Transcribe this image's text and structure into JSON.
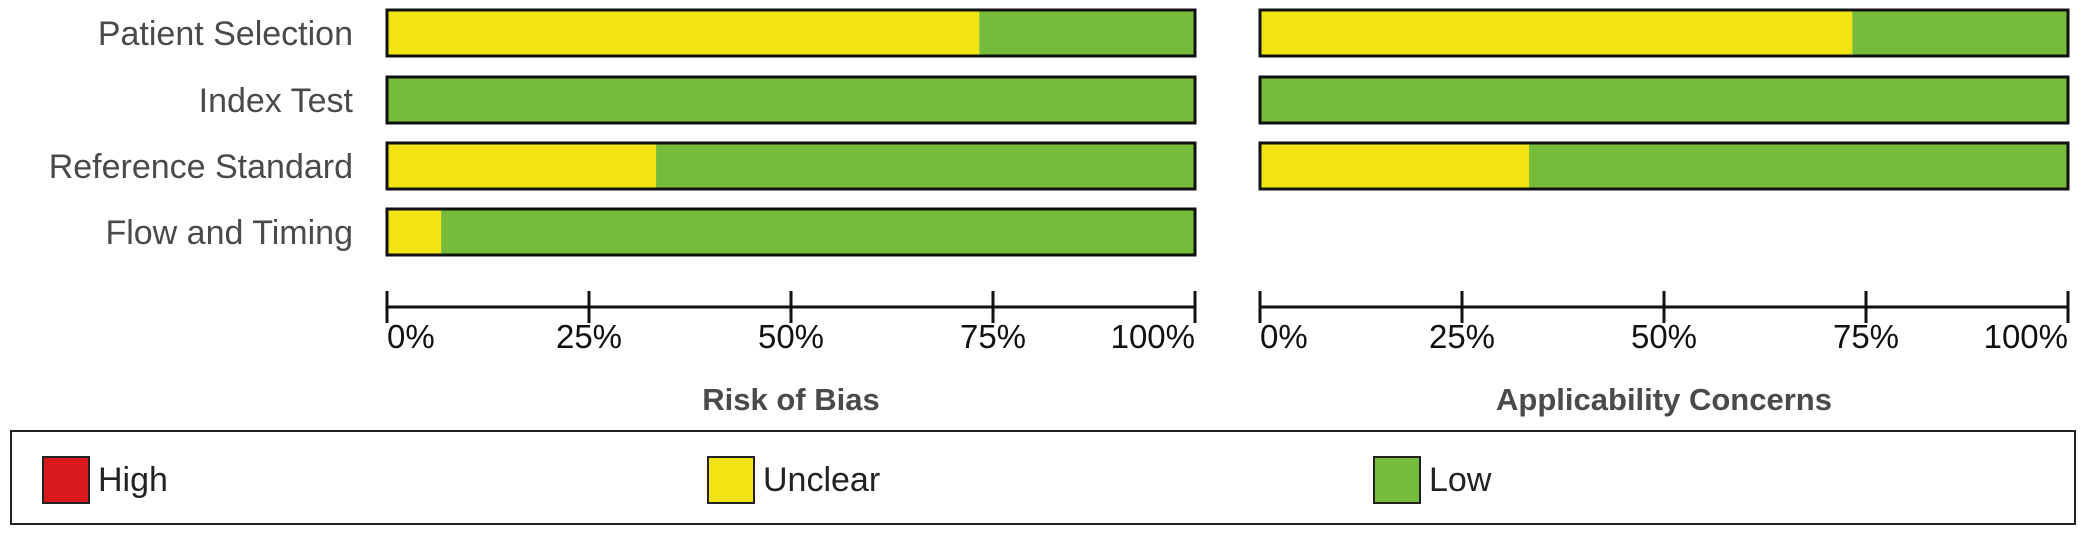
{
  "chart_data": {
    "type": "bar",
    "stacked": true,
    "orientation": "horizontal",
    "categories": [
      "Patient Selection",
      "Index Test",
      "Reference Standard",
      "Flow and Timing"
    ],
    "ticks": [
      "0%",
      "25%",
      "50%",
      "75%",
      "100%"
    ],
    "xlim": [
      0,
      100
    ],
    "panels": [
      {
        "title": "Risk of Bias",
        "series": [
          {
            "name": "High",
            "values": [
              0,
              0,
              0,
              0
            ]
          },
          {
            "name": "Unclear",
            "values": [
              73.3,
              0,
              33.3,
              6.7
            ]
          },
          {
            "name": "Low",
            "values": [
              26.7,
              100,
              66.7,
              93.3
            ]
          }
        ]
      },
      {
        "title": "Applicability Concerns",
        "series": [
          {
            "name": "High",
            "values": [
              0,
              0,
              0,
              null
            ]
          },
          {
            "name": "Unclear",
            "values": [
              73.3,
              0,
              33.3,
              null
            ]
          },
          {
            "name": "Low",
            "values": [
              26.7,
              100,
              66.7,
              null
            ]
          }
        ]
      }
    ],
    "legend": {
      "position": "bottom",
      "items": [
        {
          "label": "High",
          "color": "#d7191c"
        },
        {
          "label": "Unclear",
          "color": "#f2e313"
        },
        {
          "label": "Low",
          "color": "#76bb3a"
        }
      ]
    }
  }
}
